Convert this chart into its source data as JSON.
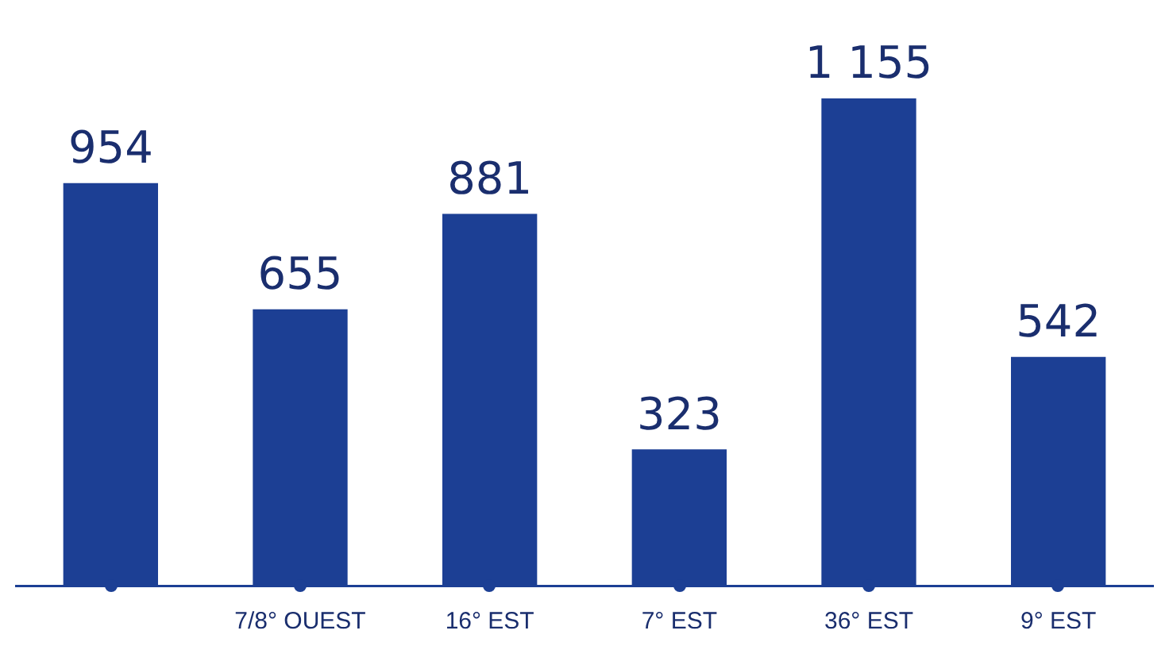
{
  "chart_data": {
    "type": "bar",
    "categories": [
      null,
      "7/8° OUEST",
      "16° EST",
      "7° EST",
      "36° EST",
      "9° EST"
    ],
    "values": [
      954,
      655,
      881,
      323,
      1155,
      542
    ],
    "value_labels": [
      "954",
      "655",
      "881",
      "323",
      "1 155",
      "542"
    ],
    "color": "#1c3f94",
    "grid": false,
    "legend": false,
    "tick_labels": "x"
  }
}
